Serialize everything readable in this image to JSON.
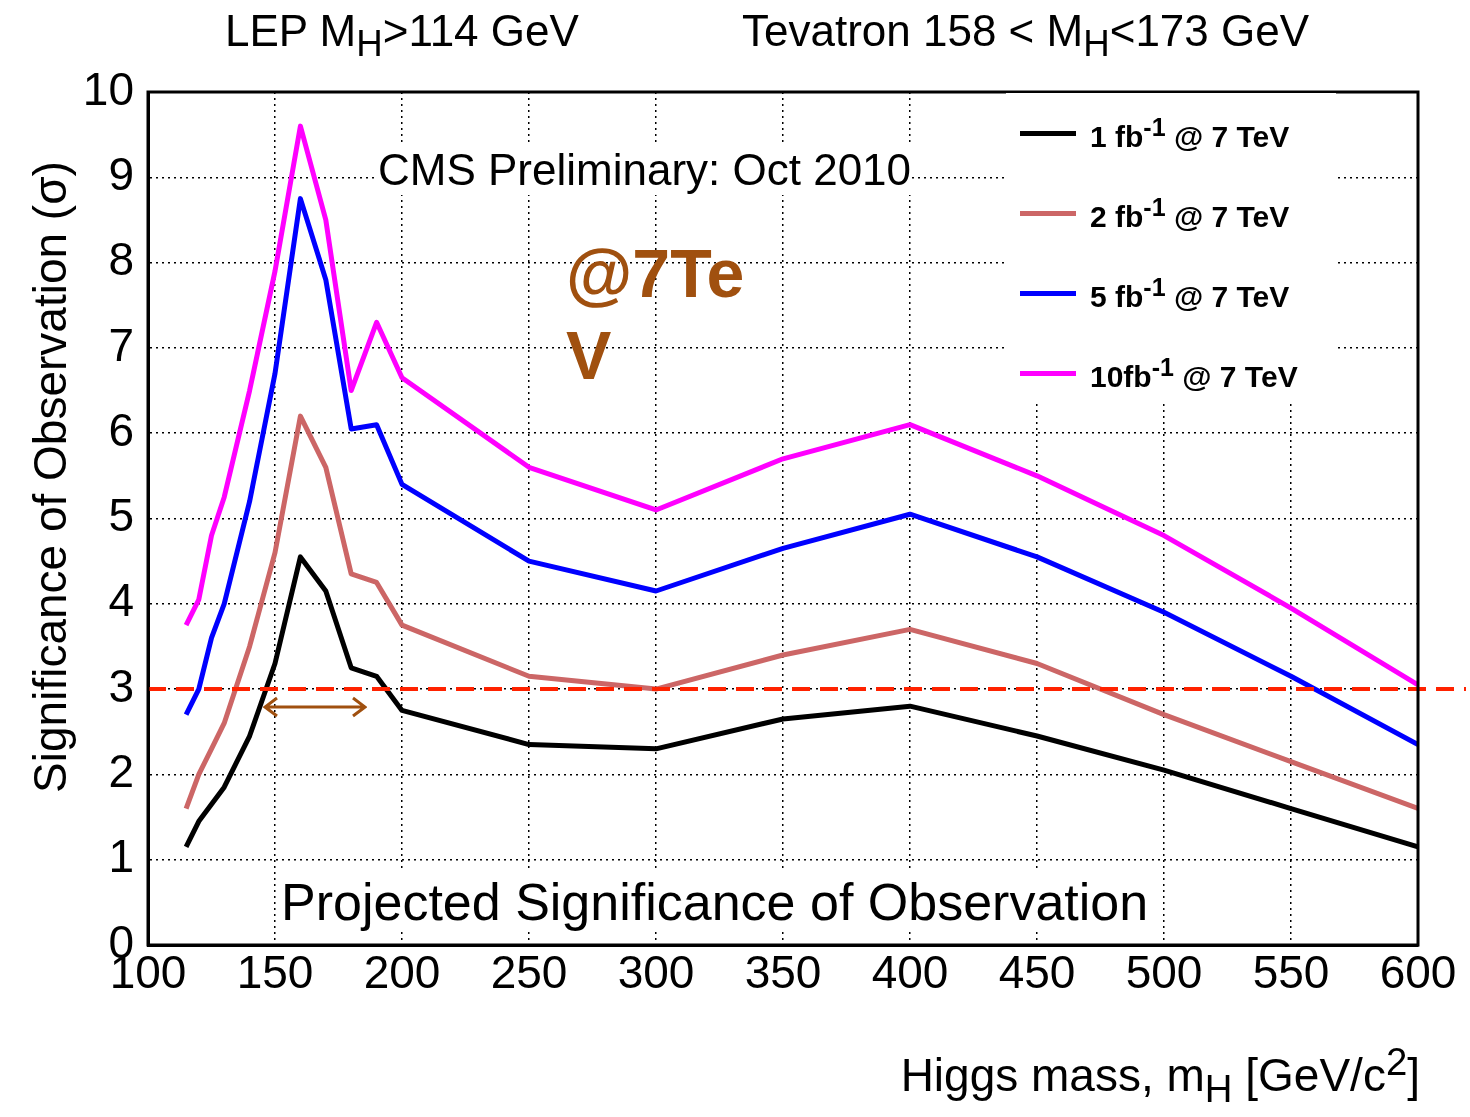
{
  "chart_data": {
    "type": "line",
    "xlabel": "Higgs mass, m$_{H}$ [GeV/c$^{2}$]",
    "ylabel": "Significance of Observation (σ)",
    "x": [
      115,
      120,
      125,
      130,
      140,
      150,
      160,
      170,
      180,
      190,
      200,
      250,
      300,
      350,
      400,
      450,
      500,
      550,
      600
    ],
    "series": [
      {
        "name": "1 fb$^{-1}$ @ 7 TeV",
        "color": "#000000",
        "values": [
          1.15,
          1.45,
          1.65,
          1.85,
          2.45,
          3.3,
          4.55,
          4.15,
          3.25,
          3.15,
          2.75,
          2.35,
          2.3,
          2.65,
          2.8,
          2.45,
          2.05,
          1.6,
          1.15
        ]
      },
      {
        "name": "2 fb$^{-1}$ @ 7 TeV",
        "color": "#cc6666",
        "values": [
          1.6,
          2.0,
          2.3,
          2.6,
          3.5,
          4.6,
          6.2,
          5.6,
          4.35,
          4.25,
          3.75,
          3.15,
          3.0,
          3.4,
          3.7,
          3.3,
          2.7,
          2.15,
          1.6
        ]
      },
      {
        "name": "5 fb$^{-1}$ @ 7 TeV",
        "color": "#0000ff",
        "values": [
          2.7,
          3.0,
          3.6,
          4.0,
          5.2,
          6.7,
          8.75,
          7.8,
          6.05,
          6.1,
          5.4,
          4.5,
          4.15,
          4.65,
          5.05,
          4.55,
          3.9,
          3.15,
          2.35
        ]
      },
      {
        "name": "10fb$^{-1}$ @ 7 TeV",
        "color": "#ff00ff",
        "values": [
          3.75,
          4.05,
          4.8,
          5.25,
          6.5,
          7.9,
          9.6,
          8.5,
          6.5,
          7.3,
          6.65,
          5.6,
          5.1,
          5.7,
          6.1,
          5.5,
          4.8,
          3.95,
          3.05
        ]
      }
    ],
    "xlim": [
      100,
      600
    ],
    "xticks": [
      100,
      150,
      200,
      250,
      300,
      350,
      400,
      450,
      500,
      550,
      600
    ],
    "ylim": [
      0,
      10
    ],
    "yticks": [
      0,
      1,
      2,
      3,
      4,
      5,
      6,
      7,
      8,
      9,
      10
    ],
    "ref_lines": [
      {
        "axis": "y",
        "value": 3,
        "color": "#ff2200",
        "line_style": "dashed"
      }
    ],
    "annotations": [
      "LEP M$_{H}$>114 GeV",
      "Tevatron  158 < M$_{H}$<173 GeV",
      "CMS Preliminary: Oct 2010",
      "@7TeV",
      "Projected Significance of Observation"
    ],
    "grid": true,
    "legend": "top right",
    "marker": "none",
    "line_style": "solid"
  }
}
